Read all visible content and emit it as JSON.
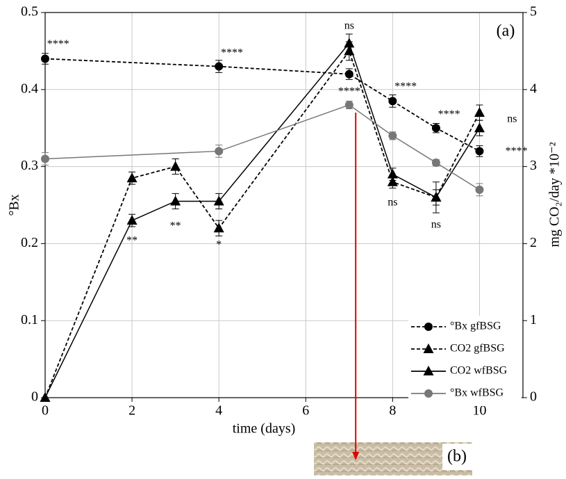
{
  "chart_data": {
    "type": "line",
    "x_label": "time (days)",
    "y_label": "°Bx",
    "y2_label": "mg CO₂/day *10⁻²",
    "panel_label": "(a)",
    "image_label": "(b)",
    "xlim": [
      0,
      11
    ],
    "xticks": [
      0,
      2,
      4,
      6,
      8,
      10
    ],
    "ylim": [
      0,
      0.5
    ],
    "yticks": [
      0,
      0.1,
      0.2,
      0.3,
      0.4,
      0.5
    ],
    "y2lim": [
      0,
      5
    ],
    "y2ticks": [
      0,
      1,
      2,
      3,
      4,
      5
    ],
    "grid": true,
    "legend": "lower right",
    "series": [
      {
        "name": "°Bx gfBSG",
        "color": "#000000",
        "dashed": true,
        "marker": "circle",
        "x": [
          0,
          4,
          7,
          8,
          9,
          10
        ],
        "values": [
          0.44,
          0.43,
          0.42,
          0.385,
          0.35,
          0.32
        ],
        "errors": [
          0.007,
          0.008,
          0.007,
          0.008,
          0.006,
          0.007
        ]
      },
      {
        "name": "CO2 gfBSG",
        "color": "#000000",
        "dashed": true,
        "marker": "triangle",
        "axis": "y2",
        "x": [
          0,
          2,
          3,
          4,
          7,
          8,
          9,
          10
        ],
        "values": [
          0,
          2.85,
          3.0,
          2.2,
          4.5,
          2.8,
          2.6,
          3.7
        ],
        "errors": [
          0,
          0.08,
          0.1,
          0.1,
          0.12,
          0.08,
          0.1,
          0.1
        ]
      },
      {
        "name": "CO2 wfBSG",
        "color": "#000000",
        "dashed": false,
        "marker": "triangle",
        "axis": "y2",
        "x": [
          0,
          2,
          3,
          4,
          7,
          8,
          9,
          10
        ],
        "values": [
          0,
          2.3,
          2.55,
          2.55,
          4.6,
          2.9,
          2.6,
          3.5
        ],
        "errors": [
          0,
          0.08,
          0.1,
          0.1,
          0.12,
          0.08,
          0.2,
          0.1
        ]
      },
      {
        "name": "°Bx wfBSG",
        "color": "#777777",
        "dashed": false,
        "marker": "circle",
        "x": [
          0,
          4,
          7,
          8,
          9,
          10
        ],
        "values": [
          0.31,
          0.32,
          0.38,
          0.34,
          0.305,
          0.27
        ],
        "errors": [
          0.008,
          0.008,
          0.005,
          0.005,
          0.004,
          0.008
        ]
      }
    ],
    "annotations": [
      "****",
      "****",
      "ns",
      "****",
      "****",
      "****",
      "ns",
      "****",
      "**",
      "**",
      "*",
      "ns",
      "ns"
    ]
  }
}
